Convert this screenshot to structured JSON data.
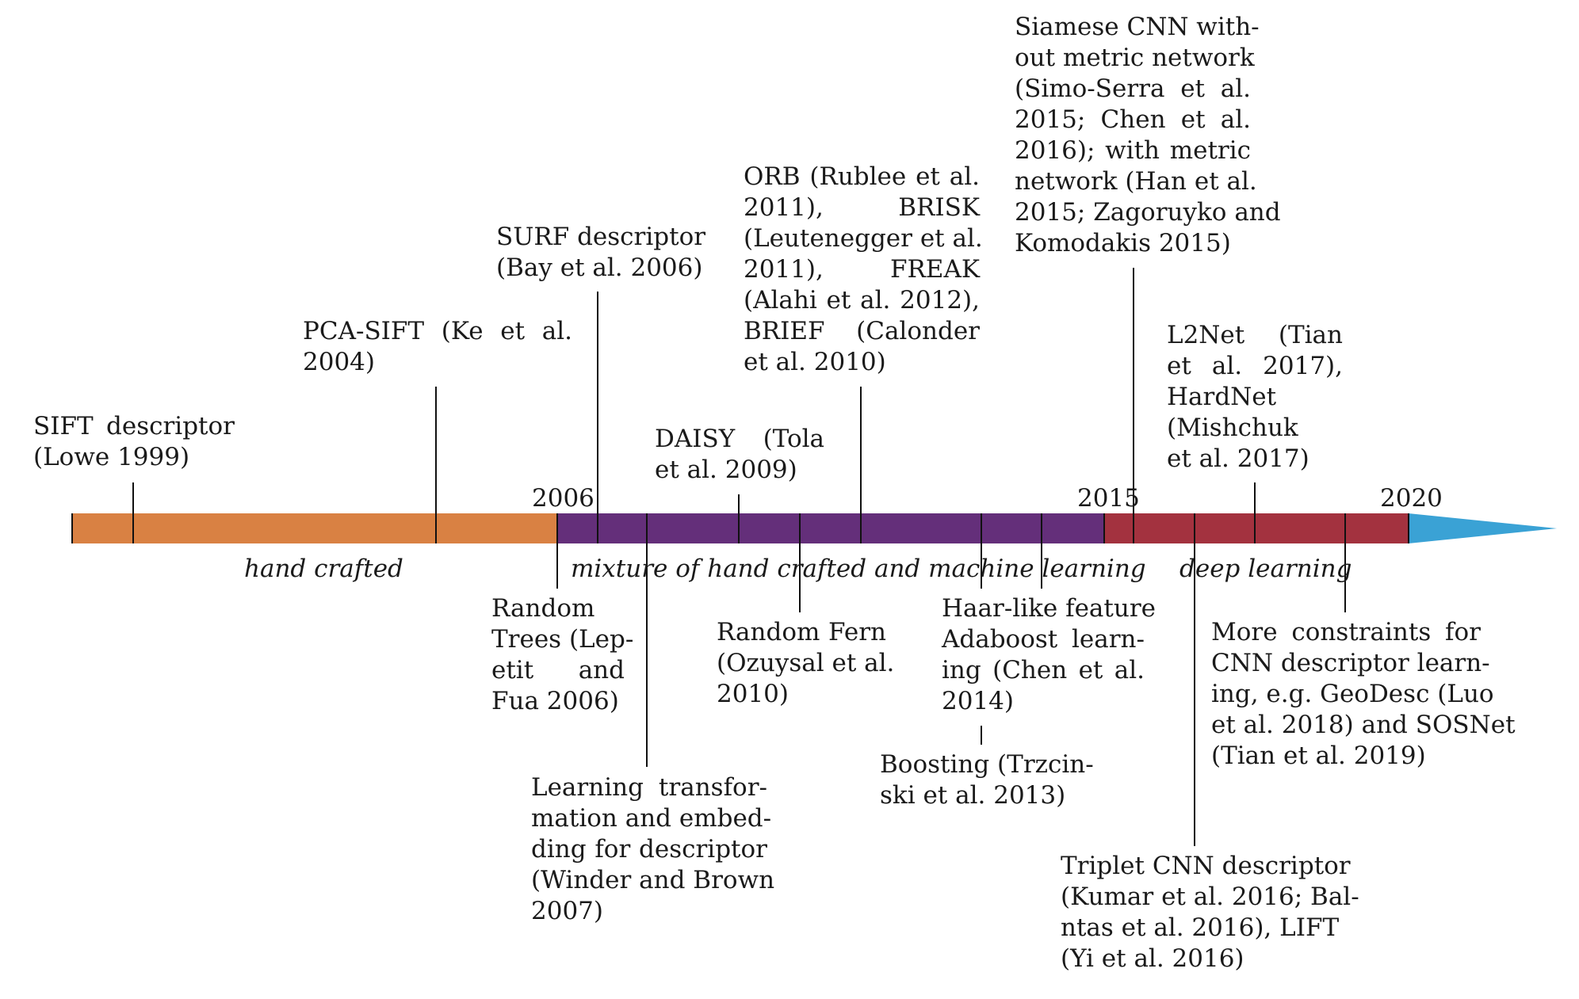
{
  "colors": {
    "hand_crafted": "#d98143",
    "mixture": "#642f7a",
    "deep_learning": "#a3323f",
    "arrow_tip": "#3aa2d5"
  },
  "years": [
    "2006",
    "2015",
    "2020"
  ],
  "eras": [
    "hand crafted",
    "mixture of hand crafted and machine learning",
    "deep learning"
  ],
  "entries": [
    {
      "id": "sift",
      "lines": [
        "SIFT descriptor",
        "(Lowe 1999)"
      ]
    },
    {
      "id": "pca-sift",
      "lines": [
        "PCA-SIFT (Ke et al.",
        "2004)"
      ]
    },
    {
      "id": "surf",
      "lines": [
        "SURF descriptor",
        "(Bay et al. 2006)"
      ]
    },
    {
      "id": "orb",
      "lines": [
        "ORB (Rublee et al.",
        "2011), BRISK",
        "(Leutenegger et al.",
        "2011), FREAK",
        "(Alahi et al. 2012),",
        "BRIEF (Calonder",
        "et al. 2010)"
      ]
    },
    {
      "id": "daisy",
      "lines": [
        "DAISY (Tola",
        "et al. 2009)"
      ]
    },
    {
      "id": "siamese",
      "lines": [
        "Siamese CNN with-",
        "out metric network",
        "(Simo-Serra et al.",
        "2015; Chen et al.",
        "2016); with metric",
        "network (Han et al.",
        "2015; Zagoruyko and",
        "Komodakis 2015)"
      ]
    },
    {
      "id": "l2net",
      "lines": [
        "L2Net (Tian",
        "et al. 2017),",
        "HardNet",
        "(Mishchuk",
        "et al. 2017)"
      ]
    },
    {
      "id": "random-trees",
      "lines": [
        "Random",
        "Trees (Lep-",
        "etit and",
        "Fua 2006)"
      ]
    },
    {
      "id": "learning-transformation",
      "lines": [
        "Learning transfor-",
        "mation and embed-",
        "ding for descriptor",
        "(Winder and Brown",
        "2007)"
      ]
    },
    {
      "id": "random-fern",
      "lines": [
        "Random Fern",
        "(Ozuysal et al.",
        "2010)"
      ]
    },
    {
      "id": "haar",
      "lines": [
        "Haar-like feature",
        "Adaboost learn-",
        "ing (Chen et al.",
        "2014)"
      ]
    },
    {
      "id": "boosting",
      "lines": [
        "Boosting (Trzcin-",
        "ski et al. 2013)"
      ]
    },
    {
      "id": "triplet",
      "lines": [
        "Triplet CNN descriptor",
        "(Kumar et al. 2016; Bal-",
        "ntas et al. 2016), LIFT",
        "(Yi et al. 2016)"
      ]
    },
    {
      "id": "constraints",
      "lines": [
        "More constraints for",
        "CNN descriptor learn-",
        "ing, e.g. GeoDesc (Luo",
        "et al. 2018) and SOSNet",
        "(Tian et al. 2019)"
      ]
    }
  ]
}
